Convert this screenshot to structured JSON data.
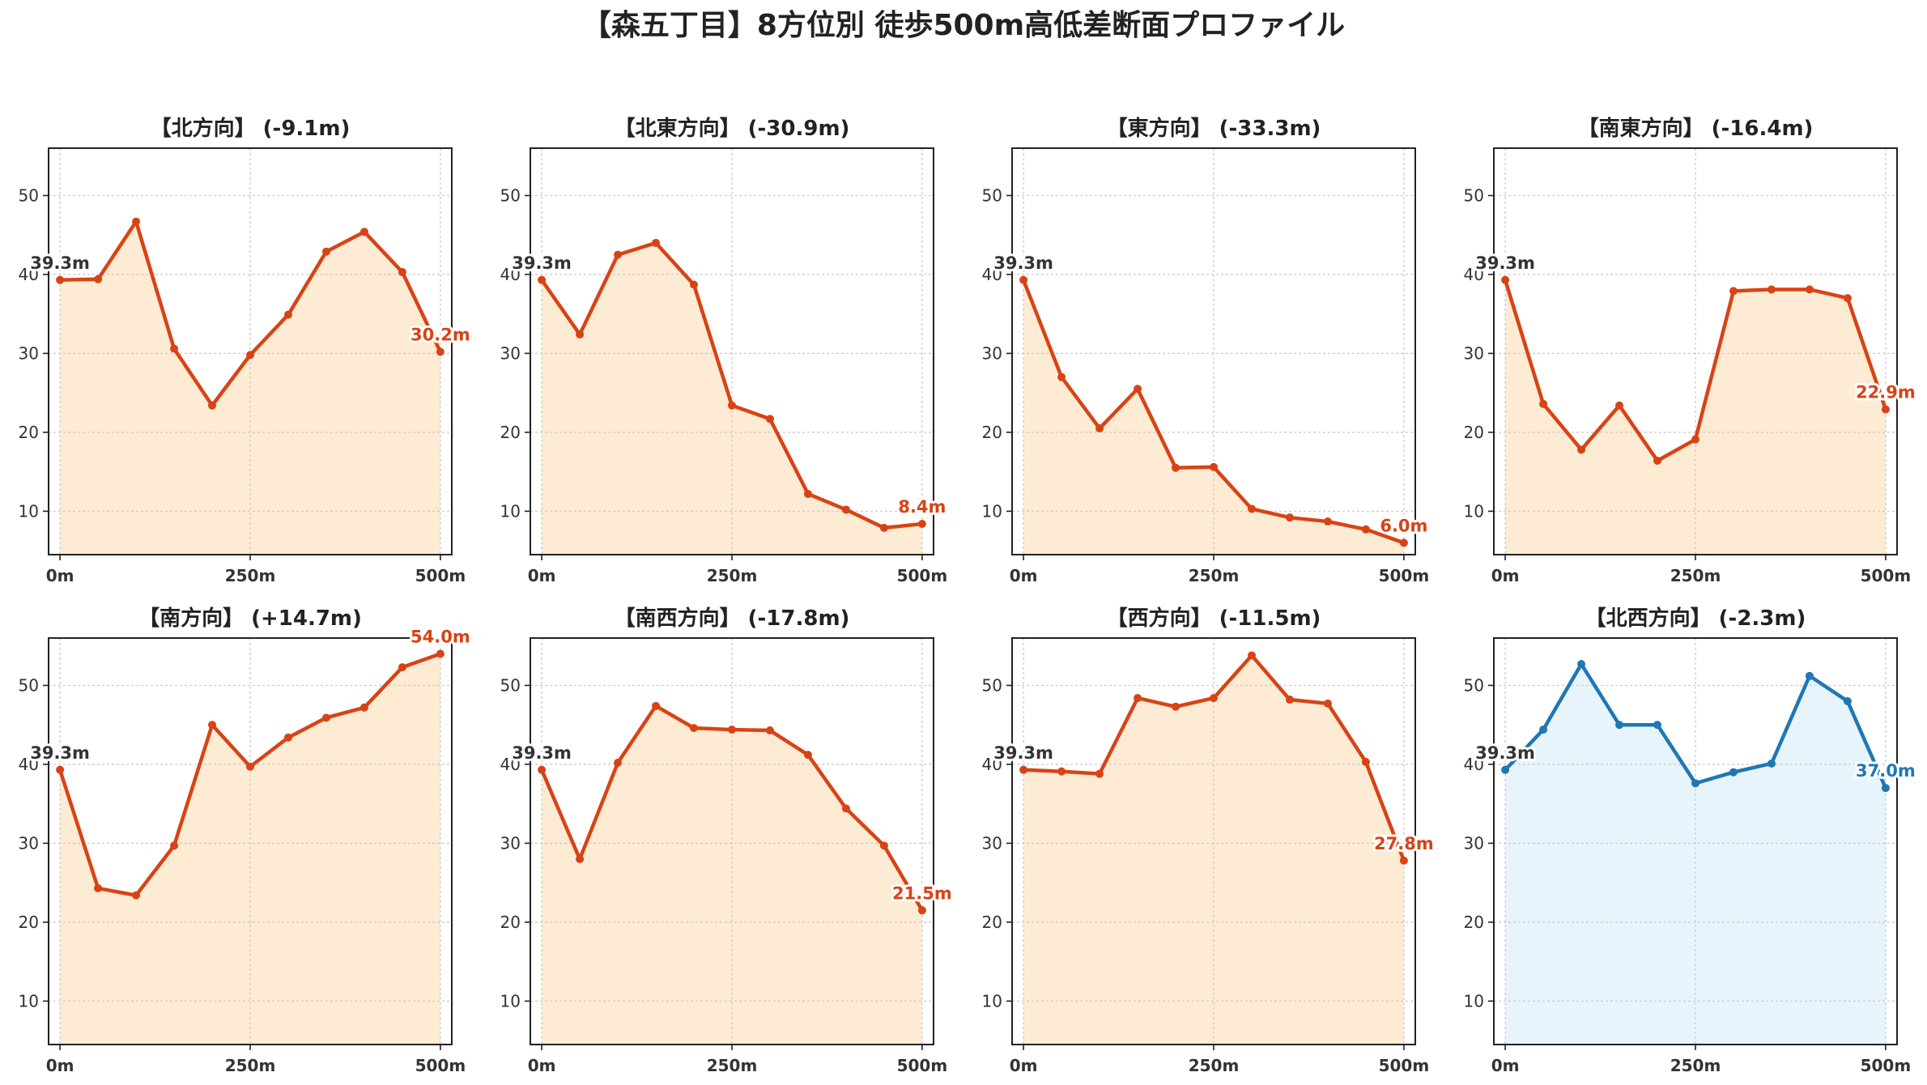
{
  "title": "【森五丁目】8方位別 徒歩500m高低差断面プロファイル",
  "colors": {
    "down_line": "#d84315",
    "down_fill": "#fdebd3",
    "up_line": "#1f77b4",
    "up_fill": "#e8f4fb",
    "start_label": "#333333",
    "grid": "#cccccc"
  },
  "chart_data": [
    {
      "type": "area",
      "title": "【北方向】 (-9.1m)",
      "x": [
        0,
        50,
        100,
        150,
        200,
        250,
        300,
        350,
        400,
        450,
        500
      ],
      "y": [
        39.3,
        39.4,
        46.7,
        30.6,
        23.4,
        29.8,
        34.9,
        42.9,
        45.4,
        40.3,
        30.2
      ],
      "start_label": "39.3m",
      "end_label": "30.2m",
      "ylim": [
        4.5,
        56
      ],
      "yticks": [
        10,
        20,
        30,
        40,
        50
      ],
      "xticks": [
        "0m",
        "250m",
        "500m"
      ],
      "style": "down",
      "grid": true
    },
    {
      "type": "area",
      "title": "【北東方向】 (-30.9m)",
      "x": [
        0,
        50,
        100,
        150,
        200,
        250,
        300,
        350,
        400,
        450,
        500
      ],
      "y": [
        39.3,
        32.4,
        42.5,
        44.0,
        38.7,
        23.4,
        21.7,
        12.2,
        10.2,
        7.9,
        8.4
      ],
      "start_label": "39.3m",
      "end_label": "8.4m",
      "ylim": [
        4.5,
        56
      ],
      "yticks": [
        10,
        20,
        30,
        40,
        50
      ],
      "xticks": [
        "0m",
        "250m",
        "500m"
      ],
      "style": "down",
      "grid": true
    },
    {
      "type": "area",
      "title": "【東方向】 (-33.3m)",
      "x": [
        0,
        50,
        100,
        150,
        200,
        250,
        300,
        350,
        400,
        450,
        500
      ],
      "y": [
        39.3,
        27.0,
        20.5,
        25.5,
        15.5,
        15.6,
        10.3,
        9.2,
        8.7,
        7.7,
        6.0
      ],
      "start_label": "39.3m",
      "end_label": "6.0m",
      "ylim": [
        4.5,
        56
      ],
      "yticks": [
        10,
        20,
        30,
        40,
        50
      ],
      "xticks": [
        "0m",
        "250m",
        "500m"
      ],
      "style": "down",
      "grid": true
    },
    {
      "type": "area",
      "title": "【南東方向】 (-16.4m)",
      "x": [
        0,
        50,
        100,
        150,
        200,
        250,
        300,
        350,
        400,
        450,
        500
      ],
      "y": [
        39.3,
        23.6,
        17.8,
        23.4,
        16.4,
        19.1,
        37.9,
        38.1,
        38.1,
        37.0,
        22.9
      ],
      "start_label": "39.3m",
      "end_label": "22.9m",
      "ylim": [
        4.5,
        56
      ],
      "yticks": [
        10,
        20,
        30,
        40,
        50
      ],
      "xticks": [
        "0m",
        "250m",
        "500m"
      ],
      "style": "down",
      "grid": true
    },
    {
      "type": "area",
      "title": "【南方向】 (+14.7m)",
      "x": [
        0,
        50,
        100,
        150,
        200,
        250,
        300,
        350,
        400,
        450,
        500
      ],
      "y": [
        39.3,
        24.3,
        23.4,
        29.7,
        45.0,
        39.7,
        43.4,
        45.9,
        47.2,
        52.3,
        54.0
      ],
      "start_label": "39.3m",
      "end_label": "54.0m",
      "ylim": [
        4.5,
        56
      ],
      "yticks": [
        10,
        20,
        30,
        40,
        50
      ],
      "xticks": [
        "0m",
        "250m",
        "500m"
      ],
      "style": "down",
      "grid": true
    },
    {
      "type": "area",
      "title": "【南西方向】 (-17.8m)",
      "x": [
        0,
        50,
        100,
        150,
        200,
        250,
        300,
        350,
        400,
        450,
        500
      ],
      "y": [
        39.3,
        28.0,
        40.2,
        47.4,
        44.6,
        44.4,
        44.3,
        41.2,
        34.4,
        29.7,
        21.5
      ],
      "start_label": "39.3m",
      "end_label": "21.5m",
      "ylim": [
        4.5,
        56
      ],
      "yticks": [
        10,
        20,
        30,
        40,
        50
      ],
      "xticks": [
        "0m",
        "250m",
        "500m"
      ],
      "style": "down",
      "grid": true
    },
    {
      "type": "area",
      "title": "【西方向】 (-11.5m)",
      "x": [
        0,
        50,
        100,
        150,
        200,
        250,
        300,
        350,
        400,
        450,
        500
      ],
      "y": [
        39.3,
        39.1,
        38.8,
        48.4,
        47.3,
        48.4,
        53.8,
        48.2,
        47.7,
        40.3,
        27.8
      ],
      "start_label": "39.3m",
      "end_label": "27.8m",
      "ylim": [
        4.5,
        56
      ],
      "yticks": [
        10,
        20,
        30,
        40,
        50
      ],
      "xticks": [
        "0m",
        "250m",
        "500m"
      ],
      "style": "down",
      "grid": true
    },
    {
      "type": "area",
      "title": "【北西方向】 (-2.3m)",
      "x": [
        0,
        50,
        100,
        150,
        200,
        250,
        300,
        350,
        400,
        450,
        500
      ],
      "y": [
        39.3,
        44.4,
        52.7,
        45.0,
        45.0,
        37.6,
        39.0,
        40.1,
        51.2,
        48.0,
        37.0
      ],
      "start_label": "39.3m",
      "end_label": "37.0m",
      "ylim": [
        4.5,
        56
      ],
      "yticks": [
        10,
        20,
        30,
        40,
        50
      ],
      "xticks": [
        "0m",
        "250m",
        "500m"
      ],
      "style": "up",
      "grid": true
    }
  ]
}
